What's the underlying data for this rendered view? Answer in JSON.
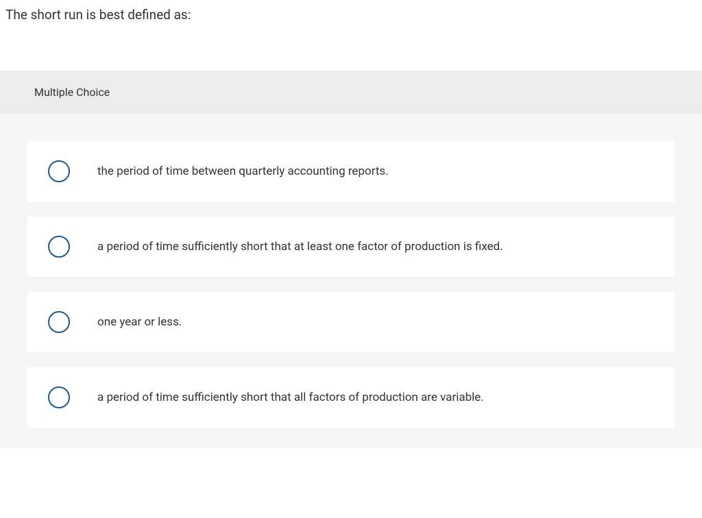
{
  "question": {
    "text": "The short run is best defined as:"
  },
  "header": {
    "label": "Multiple Choice"
  },
  "options": [
    {
      "text": "the period of time between quarterly accounting reports."
    },
    {
      "text": "a period of time sufficiently short that at least one factor of production is fixed."
    },
    {
      "text": "one year or less."
    },
    {
      "text": "a period of time sufficiently short that all factors of production are variable."
    }
  ],
  "styling": {
    "radio_border_color": "#1a5a8a",
    "option_bg": "#ffffff",
    "container_bg": "#f6f6f6",
    "header_bg": "#ececec",
    "text_color": "#333333"
  }
}
